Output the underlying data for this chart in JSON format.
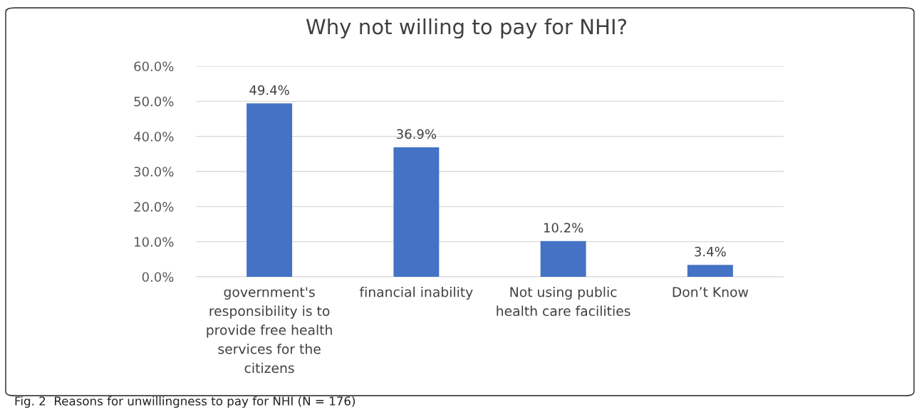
{
  "chart_data": {
    "type": "bar",
    "title": "Why not willing to pay for NHI?",
    "categories": [
      "government's\nresponsibility is to\nprovide free health\nservices for the\ncitizens",
      "financial inability",
      "Not using public\nhealth care facilities",
      "Don’t Know"
    ],
    "values": [
      49.4,
      36.9,
      10.2,
      3.4
    ],
    "value_labels": [
      "49.4%",
      "36.9%",
      "10.2%",
      "3.4%"
    ],
    "color": "#4472c4",
    "ylim": [
      0,
      60
    ],
    "yticks": [
      {
        "value": 0,
        "label": "0.0%"
      },
      {
        "value": 10,
        "label": "10.0%"
      },
      {
        "value": 20,
        "label": "20.0%"
      },
      {
        "value": 30,
        "label": "30.0%"
      },
      {
        "value": 40,
        "label": "40.0%"
      },
      {
        "value": 50,
        "label": "50.0%"
      },
      {
        "value": 60,
        "label": "60.0%"
      }
    ],
    "grid": "y",
    "annotations": [
      "Fig. 2  Reasons for unwillingness to pay for NHI (N = 176)"
    ]
  }
}
